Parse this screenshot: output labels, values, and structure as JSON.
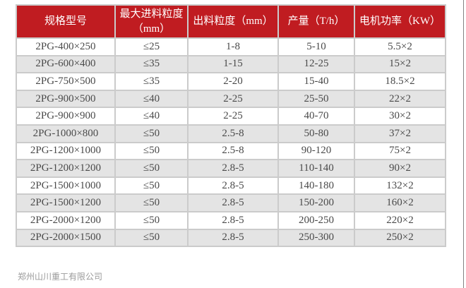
{
  "table": {
    "headers": [
      "规格型号",
      "最大进料粒度（mm）",
      "出料粒度（mm）",
      "产量（T/h）",
      "电机功率（KW）"
    ],
    "rows": [
      [
        "2PG-400×250",
        "≤25",
        "1-8",
        "5-10",
        "5.5×2"
      ],
      [
        "2PG-600×400",
        "≤35",
        "1-15",
        "12-25",
        "15×2"
      ],
      [
        "2PG-750×500",
        "≤35",
        "2-20",
        "15-40",
        "18.5×2"
      ],
      [
        "2PG-900×500",
        "≤40",
        "2-25",
        "25-50",
        "22×2"
      ],
      [
        "2PG-900×900",
        "≤40",
        "2-25",
        "40-70",
        "30×2"
      ],
      [
        "2PG-1000×800",
        "≤50",
        "2.5-8",
        "50-80",
        "37×2"
      ],
      [
        "2PG-1200×1000",
        "≤50",
        "2.5-8",
        "90-120",
        "75×2"
      ],
      [
        "2PG-1200×1200",
        "≤50",
        "2.8-5",
        "110-140",
        "90×2"
      ],
      [
        "2PG-1500×1000",
        "≤50",
        "2.8-5",
        "140-180",
        "132×2"
      ],
      [
        "2PG-1500×1200",
        "≤50",
        "2.8-5",
        "150-200",
        "160×2"
      ],
      [
        "2PG-2000×1200",
        "≤50",
        "2.8-5",
        "200-250",
        "220×2"
      ],
      [
        "2PG-2000×1500",
        "≤50",
        "2.8-5",
        "250-300",
        "250×2"
      ]
    ]
  },
  "footer": {
    "company": "郑州山川重工有限公司"
  },
  "colors": {
    "header_bg": "#c01c21",
    "header_text": "#ffffff",
    "row_alt_bg": "#e4e4e4",
    "border": "#cbcbcb",
    "body_text": "#4a4a4a",
    "footer_text": "#9a9a9a"
  }
}
